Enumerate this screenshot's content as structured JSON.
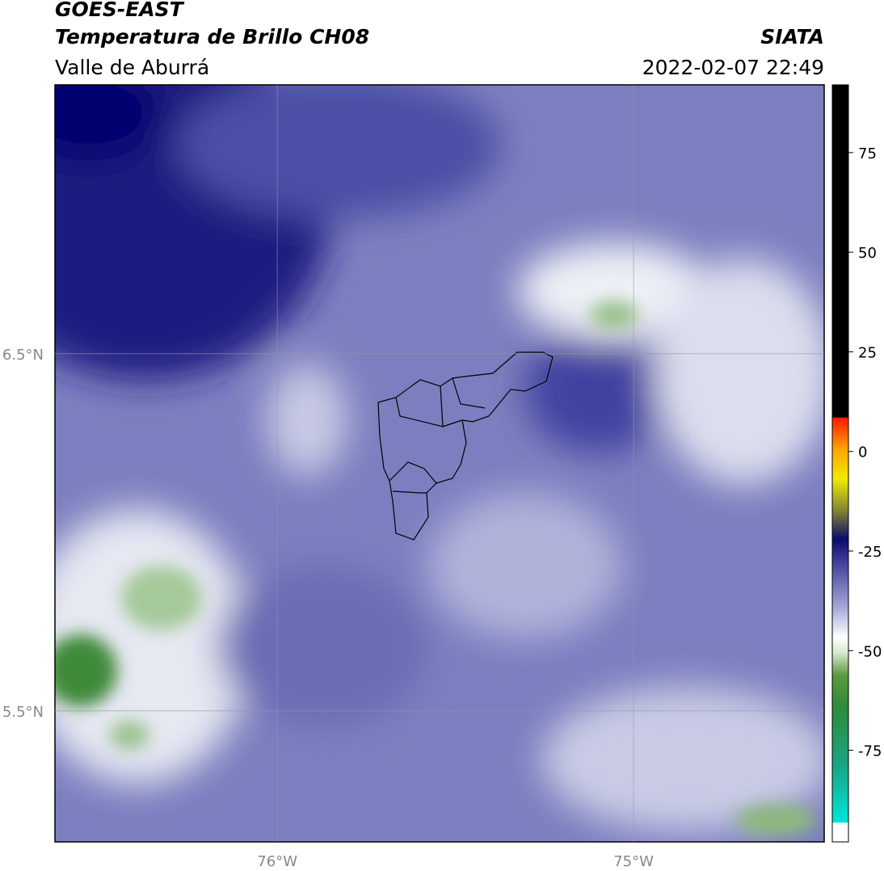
{
  "header": {
    "title": "GOES-EAST",
    "subtitle": "Temperatura de Brillo CH08",
    "region": "Valle de Aburrá",
    "source": "SIATA",
    "datetime": "2022-02-07 22:49"
  },
  "map": {
    "xlim": [
      -76.624,
      -74.465
    ],
    "ylim": [
      5.133,
      7.253
    ],
    "xticks": [
      {
        "value": -76,
        "label": "76°W"
      },
      {
        "value": -75,
        "label": "75°W"
      }
    ],
    "yticks": [
      {
        "value": 6.5,
        "label": "6.5°N"
      },
      {
        "value": 5.5,
        "label": "5.5°N"
      }
    ]
  },
  "colorbar": {
    "lim": [
      -98,
      92
    ],
    "ticks": [
      75,
      50,
      25,
      0,
      -25,
      -50,
      -75
    ]
  }
}
